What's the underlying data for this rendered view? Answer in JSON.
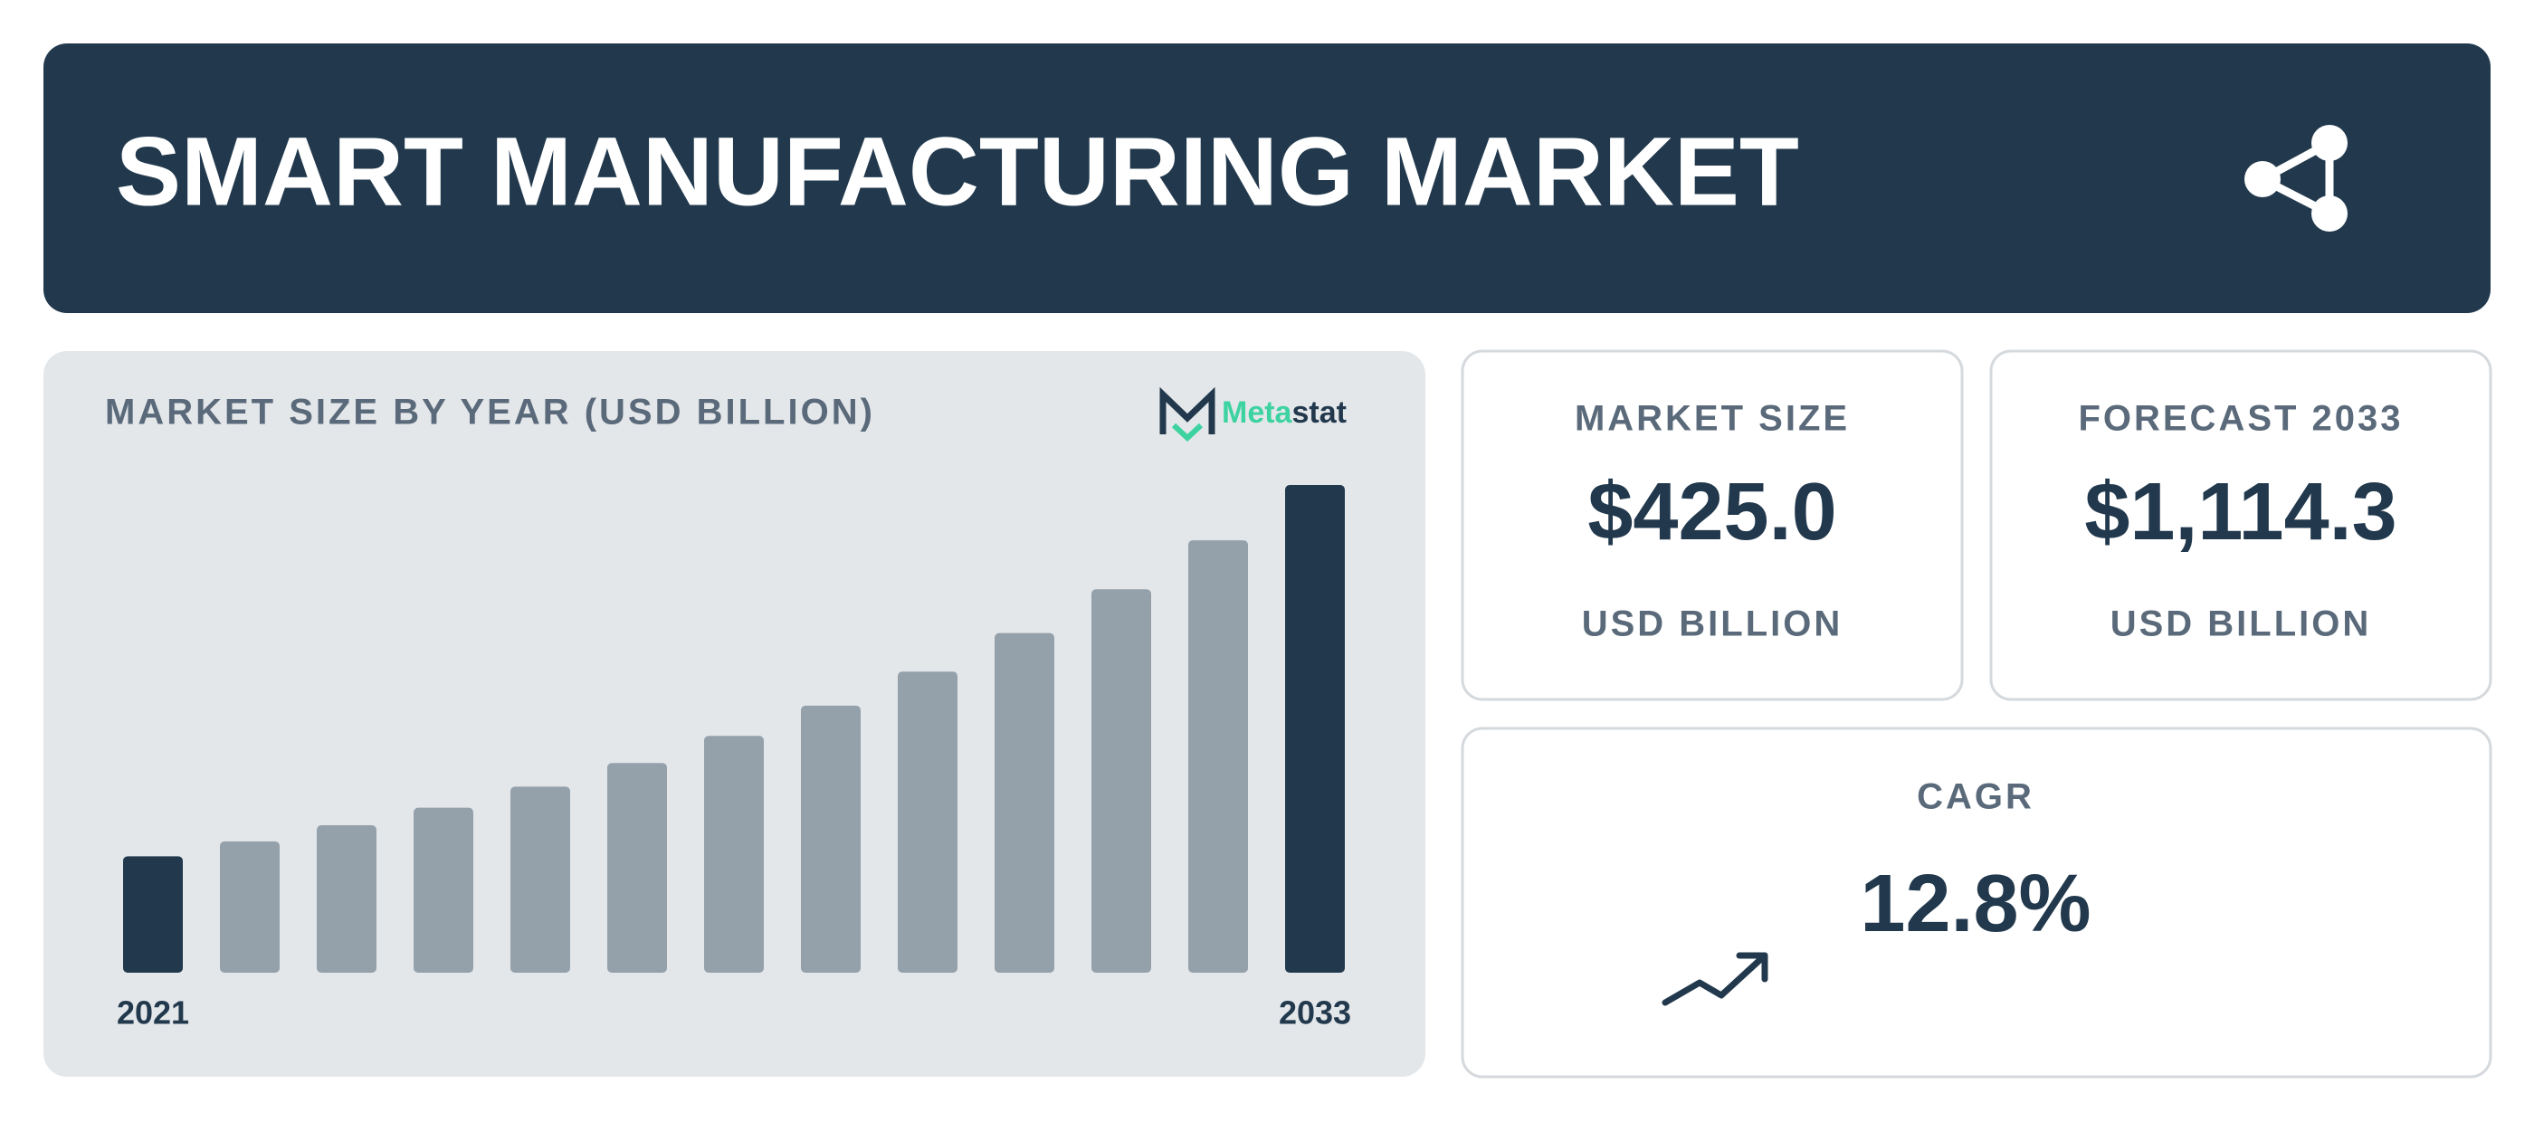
{
  "header": {
    "title": "SMART MANUFACTURING MARKET"
  },
  "chart_data": {
    "type": "bar",
    "title": "MARKET SIZE BY YEAR (USD BILLION)",
    "categories": [
      "2021",
      null,
      null,
      null,
      null,
      null,
      null,
      null,
      null,
      null,
      null,
      null,
      "2033"
    ],
    "values": [
      266,
      300,
      337,
      377,
      425,
      479,
      541,
      610,
      688,
      776,
      876,
      988,
      1114.3
    ],
    "colors": [
      "#22394d",
      "#94a1ab",
      "#94a1ab",
      "#94a1ab",
      "#94a1ab",
      "#94a1ab",
      "#94a1ab",
      "#94a1ab",
      "#94a1ab",
      "#94a1ab",
      "#94a1ab",
      "#94a1ab",
      "#22394d"
    ],
    "grid": false
  },
  "logo": [
    "Meta",
    "stat"
  ],
  "cards": [
    {
      "label": "MARKET SIZE",
      "value": "$425.0",
      "unit": "USD BILLION"
    },
    {
      "label": "FORECAST 2033",
      "value": "$1,114.3",
      "unit": "USD BILLION"
    },
    {
      "label": "CAGR",
      "value": "12.8%"
    }
  ]
}
